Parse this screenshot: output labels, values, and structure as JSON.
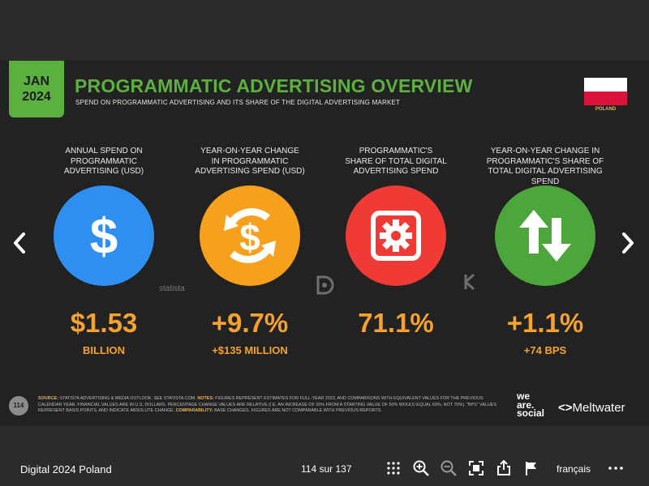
{
  "slide": {
    "date_month": "JAN",
    "date_year": "2024",
    "title": "PROGRAMMATIC ADVERTISING OVERVIEW",
    "subtitle": "SPEND ON PROGRAMMATIC ADVERTISING AND ITS SHARE OF THE DIGITAL ADVERTISING MARKET",
    "country": "POLAND",
    "metrics": [
      {
        "label_lines": [
          "ANNUAL SPEND ON",
          "PROGRAMMATIC",
          "ADVERTISING (USD)"
        ],
        "value": "$1.53",
        "sub": "BILLION",
        "color": "#2f8ff0",
        "icon": "dollar-icon"
      },
      {
        "label_lines": [
          "YEAR-ON-YEAR CHANGE",
          "IN PROGRAMMATIC",
          "ADVERTISING SPEND (USD)"
        ],
        "value": "+9.7%",
        "sub": "+$135 MILLION",
        "color": "#f7a01e",
        "icon": "dollar-change-icon"
      },
      {
        "label_lines": [
          "PROGRAMMATIC'S",
          "SHARE OF TOTAL DIGITAL",
          "ADVERTISING SPEND"
        ],
        "value": "71.1%",
        "sub": "",
        "color": "#ef3a35",
        "icon": "gear-icon"
      },
      {
        "label_lines": [
          "YEAR-ON-YEAR CHANGE IN",
          "PROGRAMMATIC'S SHARE OF",
          "TOTAL DIGITAL ADVERTISING SPEND"
        ],
        "value": "+1.1%",
        "sub": "+74 BPS",
        "color": "#4ca63b",
        "icon": "up-down-arrows-icon"
      }
    ],
    "source_marks": [
      "statista"
    ],
    "page_number": "114",
    "footnote_source_label": "SOURCE:",
    "footnote_source": " STATISTA ADVERTISING & MEDIA OUTLOOK. SEE STATISTA.COM. ",
    "footnote_notes_label": "NOTES:",
    "footnote_notes": " FIGURES REPRESENT ESTIMATES FOR FULL-YEAR 2023, AND COMPARISONS WITH EQUIVALENT VALUES FOR THE PREVIOUS CALENDAR YEAR. FINANCIAL VALUES ARE IN U.S. DOLLARS. PERCENTAGE CHANGE VALUES ARE RELATIVE (I.E. AN INCREASE OF 20% FROM A STARTING VALUE OF 50% WOULD EQUAL 60%, NOT 70%). \"BPS\" VALUES REPRESENT BASIS POINTS, AND INDICATE ABSOLUTE CHANGE. ",
    "footnote_comp_label": "COMPARABILITY:",
    "footnote_comp": " BASE CHANGES. FIGURES ARE NOT COMPARABLE WITH PREVIOUS REPORTS.",
    "brand_we": "we",
    "brand_are": "are.",
    "brand_social": "social",
    "brand_meltwater": "Meltwater"
  },
  "viewer": {
    "doc_title": "Digital 2024 Poland",
    "pager": "114 sur 137",
    "language": "français"
  }
}
